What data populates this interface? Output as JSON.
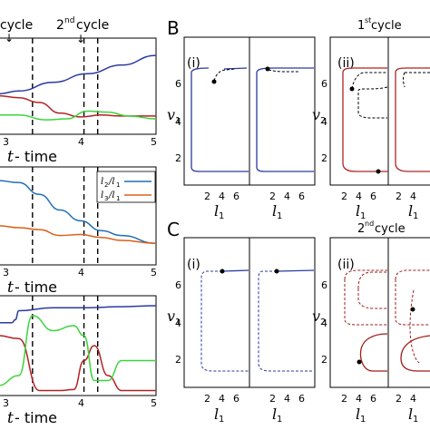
{
  "top_labels": {
    "cycle1": "cycle",
    "cycle2": "2",
    "cycle2_sup": "nd",
    "cycle2_word": "cycle",
    "arrow": "↓"
  },
  "left": {
    "xticks": [
      "3",
      "4",
      "5"
    ],
    "xlabel_t": "t",
    "xlabel_rest": " - time",
    "legend": {
      "l2": "l",
      "l2_sub": "2",
      "l2_den": "/l",
      "l2_den_sub": "1",
      "l3": "l",
      "l3_sub": "3",
      "l3_den": "/l",
      "l3_den_sub": "1"
    }
  },
  "panels": {
    "B": "B",
    "C": "C",
    "i": "(i)",
    "ii": "(ii)",
    "cycle1_num": "1",
    "cycle1_sup": "st",
    "cycle1_word": " cycle",
    "cycle2_num": "2",
    "cycle2_sup": "nd",
    "cycle2_word": " cycle",
    "yticks": [
      "2",
      "4",
      "6"
    ],
    "xticks": [
      "2",
      "4",
      "6"
    ],
    "v1": "v",
    "v1_sub": "1",
    "v2": "v",
    "v2_sub": "2",
    "l1": "l",
    "l1_sub": "1"
  },
  "colors": {
    "blue": "#2b3aa0",
    "red": "#b22222",
    "green": "#3cd43c",
    "darkred": "#a01c1c",
    "legend_blue": "#1f6fb5",
    "legend_orange": "#d9601b"
  },
  "chart_data": [
    {
      "type": "line",
      "panel": "A-top",
      "xlabel": "t - time",
      "x_range": [
        2.7,
        5
      ],
      "vlines": [
        3.2,
        3.95,
        4.15
      ],
      "series": [
        {
          "color": "blue",
          "x": [
            2.7,
            3.0,
            3.5,
            4.0,
            4.5,
            5.0
          ],
          "y": [
            0.42,
            0.45,
            0.54,
            0.63,
            0.72,
            0.82
          ]
        },
        {
          "color": "red",
          "x": [
            2.7,
            3.0,
            3.3,
            3.6,
            3.9,
            4.2,
            4.5,
            5.0
          ],
          "y": [
            0.4,
            0.38,
            0.33,
            0.22,
            0.18,
            0.2,
            0.19,
            0.19
          ]
        },
        {
          "color": "green",
          "x": [
            2.7,
            3.0,
            3.4,
            3.7,
            4.0,
            4.3,
            4.6,
            5.0
          ],
          "y": [
            0.2,
            0.2,
            0.15,
            0.16,
            0.24,
            0.23,
            0.19,
            0.16
          ]
        }
      ]
    },
    {
      "type": "line",
      "panel": "A-middle",
      "xlabel": "t - time",
      "x_range": [
        2.7,
        5
      ],
      "vlines": [
        3.2,
        3.95,
        4.15
      ],
      "series": [
        {
          "name": "l2/l1",
          "color": "legend_blue",
          "x": [
            2.7,
            3.0,
            3.3,
            3.6,
            3.9,
            4.2,
            4.5,
            5.0
          ],
          "y": [
            0.86,
            0.84,
            0.72,
            0.56,
            0.45,
            0.35,
            0.3,
            0.22
          ]
        },
        {
          "name": "l3/l1",
          "color": "legend_orange",
          "x": [
            2.7,
            3.0,
            3.3,
            3.6,
            3.9,
            4.2,
            4.5,
            5.0
          ],
          "y": [
            0.4,
            0.38,
            0.36,
            0.3,
            0.31,
            0.28,
            0.25,
            0.22
          ]
        }
      ]
    },
    {
      "type": "line",
      "panel": "A-bottom",
      "xlabel": "t - time",
      "x_range": [
        2.7,
        5
      ],
      "vlines": [
        3.2,
        3.95,
        4.15
      ],
      "series": [
        {
          "color": "blue",
          "x": [
            2.7,
            2.9,
            2.95,
            3.0,
            3.5,
            4.0,
            4.5,
            5.0
          ],
          "y": [
            0.73,
            0.73,
            0.76,
            0.85,
            0.88,
            0.88,
            0.89,
            0.9
          ]
        },
        {
          "color": "red",
          "x": [
            2.7,
            3.0,
            3.3,
            3.6,
            3.8,
            3.95,
            4.1,
            4.3,
            4.5,
            5.0
          ],
          "y": [
            0.6,
            0.57,
            0.05,
            0.05,
            0.06,
            0.35,
            0.5,
            0.2,
            0.05,
            0.05
          ]
        },
        {
          "color": "green",
          "x": [
            2.7,
            3.0,
            3.2,
            3.5,
            3.8,
            3.95,
            4.1,
            4.3,
            4.5,
            5.0
          ],
          "y": [
            0.1,
            0.2,
            0.8,
            0.65,
            0.7,
            0.6,
            0.15,
            0.15,
            0.35,
            0.35
          ]
        }
      ]
    }
  ]
}
